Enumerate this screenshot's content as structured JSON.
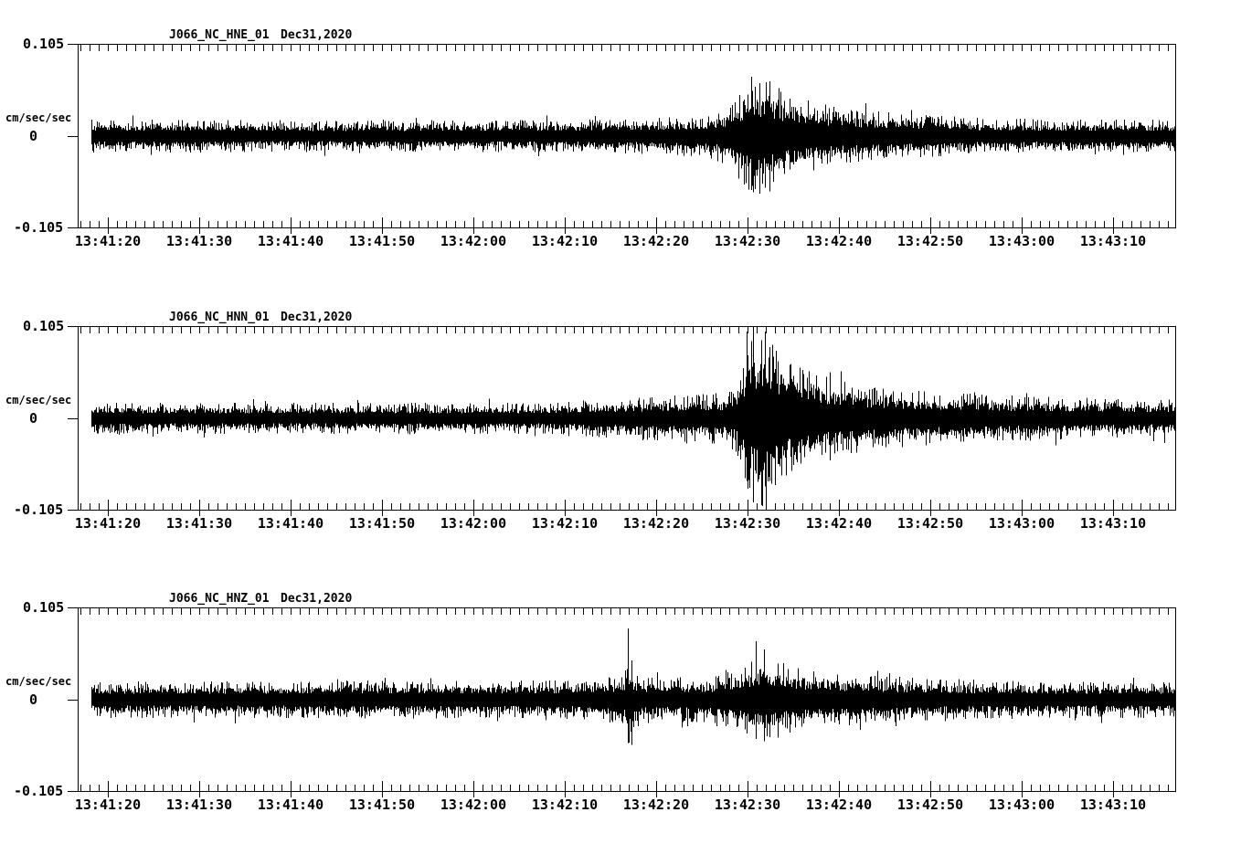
{
  "page": {
    "background": "#ffffff",
    "trace_color": "#000000",
    "axis_color": "#000000"
  },
  "x_axis": {
    "tick_labels": [
      "13:41:20",
      "13:41:30",
      "13:41:40",
      "13:41:50",
      "13:42:00",
      "13:42:10",
      "13:42:20",
      "13:42:30",
      "13:42:40",
      "13:42:50",
      "13:43:00",
      "13:43:10"
    ]
  },
  "panels": [
    {
      "station": "J066_NC_HNE_01",
      "date": "Dec31,2020",
      "y_axis": {
        "max_label": "0.105",
        "zero_label": "0",
        "min_label": "-0.105",
        "unit": "cm/sec/sec"
      }
    },
    {
      "station": "J066_NC_HNN_01",
      "date": "Dec31,2020",
      "y_axis": {
        "max_label": "0.105",
        "zero_label": "0",
        "min_label": "-0.105",
        "unit": "cm/sec/sec"
      }
    },
    {
      "station": "J066_NC_HNZ_01",
      "date": "Dec31,2020",
      "y_axis": {
        "max_label": "0.105",
        "zero_label": "0",
        "min_label": "-0.105",
        "unit": "cm/sec/sec"
      }
    }
  ],
  "chart_data": [
    {
      "type": "line",
      "series": "J066_NC_HNE_01",
      "title": "J066_NC_HNE_01  Dec31,2020",
      "ylabel": "cm/sec/sec",
      "ylim": [
        -0.105,
        0.105
      ],
      "yticks": [
        0.105,
        0,
        -0.105
      ],
      "time_start": "13:41:17",
      "time_end": "13:43:17",
      "major_tick_interval_sec": 10,
      "minor_tick_interval_sec": 1,
      "grid": false,
      "envelope_t_is_sec_after_13_41_20": true,
      "envelope": [
        [
          -2,
          0.019
        ],
        [
          10,
          0.019
        ],
        [
          25,
          0.018
        ],
        [
          40,
          0.019
        ],
        [
          52,
          0.019
        ],
        [
          56,
          0.02
        ],
        [
          60,
          0.021
        ],
        [
          63,
          0.023
        ],
        [
          65.5,
          0.026
        ],
        [
          67.5,
          0.033
        ],
        [
          69,
          0.05
        ],
        [
          70,
          0.062
        ],
        [
          71,
          0.07
        ],
        [
          72.5,
          0.064
        ],
        [
          74,
          0.052
        ],
        [
          76,
          0.043
        ],
        [
          78,
          0.038
        ],
        [
          80.5,
          0.033
        ],
        [
          83,
          0.03
        ],
        [
          86,
          0.027
        ],
        [
          90,
          0.025
        ],
        [
          94,
          0.022
        ],
        [
          99,
          0.02
        ],
        [
          105,
          0.019
        ],
        [
          117,
          0.019
        ]
      ],
      "spikes": [
        [
          70.4,
          0.068,
          0.062
        ],
        [
          71.3,
          0.061,
          0.066
        ]
      ]
    },
    {
      "type": "line",
      "series": "J066_NC_HNN_01",
      "title": "J066_NC_HNN_01  Dec31,2020",
      "ylabel": "cm/sec/sec",
      "ylim": [
        -0.105,
        0.105
      ],
      "yticks": [
        0.105,
        0,
        -0.105
      ],
      "time_start": "13:41:17",
      "time_end": "13:43:17",
      "major_tick_interval_sec": 10,
      "minor_tick_interval_sec": 1,
      "grid": false,
      "envelope_t_is_sec_after_13_41_20": true,
      "envelope": [
        [
          -2,
          0.018
        ],
        [
          15,
          0.018
        ],
        [
          30,
          0.018
        ],
        [
          45,
          0.018
        ],
        [
          50,
          0.019
        ],
        [
          54,
          0.022
        ],
        [
          58,
          0.025
        ],
        [
          62,
          0.027
        ],
        [
          65,
          0.028
        ],
        [
          67.5,
          0.03
        ],
        [
          68.8,
          0.04
        ],
        [
          69.8,
          0.075
        ],
        [
          70.5,
          0.105
        ],
        [
          72,
          0.1
        ],
        [
          73.2,
          0.085
        ],
        [
          74.5,
          0.072
        ],
        [
          76,
          0.06
        ],
        [
          78,
          0.05
        ],
        [
          80.5,
          0.043
        ],
        [
          83.5,
          0.037
        ],
        [
          87,
          0.033
        ],
        [
          91,
          0.03
        ],
        [
          95,
          0.028
        ],
        [
          100,
          0.026
        ],
        [
          106,
          0.024
        ],
        [
          112,
          0.022
        ],
        [
          117,
          0.022
        ]
      ],
      "spikes": [
        [
          69.9,
          0.1,
          0.072
        ],
        [
          70.6,
          0.105,
          0.09
        ],
        [
          71.5,
          0.09,
          0.1
        ],
        [
          72.4,
          0.082,
          0.072
        ]
      ]
    },
    {
      "type": "line",
      "series": "J066_NC_HNZ_01",
      "title": "J066_NC_HNZ_01  Dec31,2020",
      "ylabel": "cm/sec/sec",
      "ylim": [
        -0.105,
        0.105
      ],
      "yticks": [
        0.105,
        0,
        -0.105
      ],
      "time_start": "13:41:17",
      "time_end": "13:43:17",
      "major_tick_interval_sec": 10,
      "minor_tick_interval_sec": 1,
      "grid": false,
      "envelope_t_is_sec_after_13_41_20": true,
      "envelope": [
        [
          -2,
          0.021
        ],
        [
          12,
          0.021
        ],
        [
          28,
          0.022
        ],
        [
          42,
          0.022
        ],
        [
          50,
          0.023
        ],
        [
          54,
          0.024
        ],
        [
          56.4,
          0.03
        ],
        [
          57,
          0.055
        ],
        [
          57.6,
          0.032
        ],
        [
          59,
          0.027
        ],
        [
          61,
          0.026
        ],
        [
          64,
          0.026
        ],
        [
          66.5,
          0.028
        ],
        [
          68,
          0.032
        ],
        [
          69.5,
          0.038
        ],
        [
          71,
          0.048
        ],
        [
          72,
          0.052
        ],
        [
          73,
          0.046
        ],
        [
          74.5,
          0.04
        ],
        [
          76,
          0.036
        ],
        [
          78,
          0.033
        ],
        [
          81,
          0.03
        ],
        [
          84,
          0.028
        ],
        [
          88,
          0.026
        ],
        [
          93,
          0.024
        ],
        [
          98,
          0.022
        ],
        [
          104,
          0.021
        ],
        [
          110,
          0.021
        ],
        [
          117,
          0.021
        ]
      ],
      "spikes": [
        [
          56.9,
          0.082,
          0.05
        ],
        [
          57.3,
          0.045,
          0.052
        ],
        [
          70.9,
          0.067,
          0.045
        ],
        [
          71.8,
          0.058,
          0.048
        ]
      ]
    }
  ]
}
